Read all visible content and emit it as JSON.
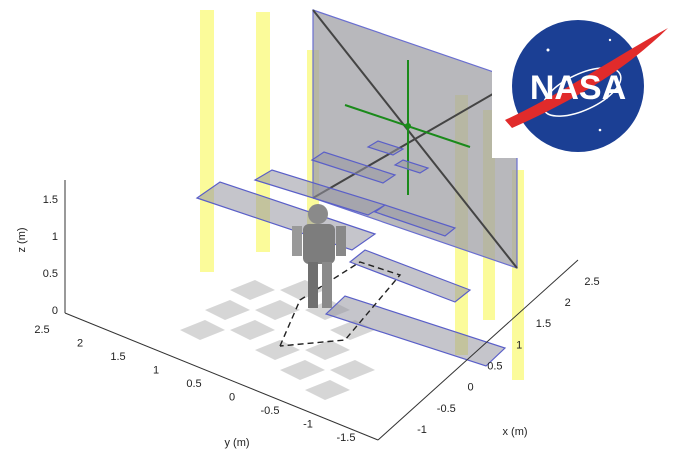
{
  "axes": {
    "x": {
      "label": "x (m)",
      "ticks": [
        "-1",
        "-0.5",
        "0",
        "0.5",
        "1",
        "1.5",
        "2",
        "2.5"
      ]
    },
    "y": {
      "label": "y (m)",
      "ticks": [
        "2.5",
        "2",
        "1.5",
        "1",
        "0.5",
        "0",
        "-0.5",
        "-1",
        "-1.5"
      ]
    },
    "z": {
      "label": "z (m)",
      "ticks": [
        "0",
        "0.5",
        "1",
        "1.5"
      ]
    }
  },
  "logo": {
    "text": "NASA"
  }
}
